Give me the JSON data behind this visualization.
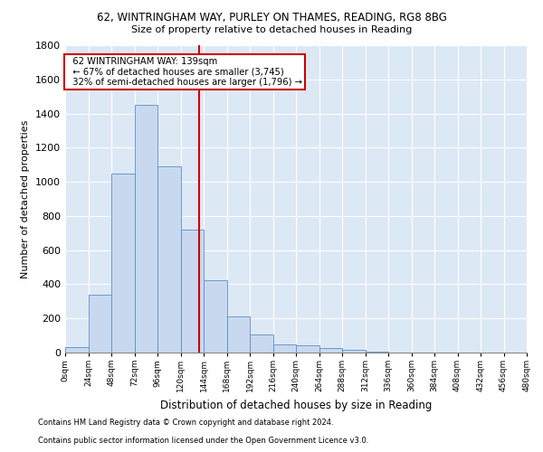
{
  "title1": "62, WINTRINGHAM WAY, PURLEY ON THAMES, READING, RG8 8BG",
  "title2": "Size of property relative to detached houses in Reading",
  "xlabel": "Distribution of detached houses by size in Reading",
  "ylabel": "Number of detached properties",
  "footnote1": "Contains HM Land Registry data © Crown copyright and database right 2024.",
  "footnote2": "Contains public sector information licensed under the Open Government Licence v3.0.",
  "annotation_line1": "62 WINTRINGHAM WAY: 139sqm",
  "annotation_line2": "← 67% of detached houses are smaller (3,745)",
  "annotation_line3": "32% of semi-detached houses are larger (1,796) →",
  "property_sqm": 139,
  "bin_width": 24,
  "bins": [
    0,
    24,
    48,
    72,
    96,
    120,
    144,
    168,
    192,
    216,
    240,
    264,
    288,
    312,
    336,
    360,
    384,
    408,
    432,
    456,
    480
  ],
  "bar_values": [
    30,
    340,
    1050,
    1450,
    1090,
    720,
    425,
    210,
    105,
    50,
    40,
    25,
    15,
    5,
    0,
    0,
    0,
    0,
    0,
    0
  ],
  "bar_color": "#c8d9ef",
  "bar_edge_color": "#5b8ec4",
  "vline_color": "#cc0000",
  "background_color": "#dde8f5",
  "grid_color": "#ffffff",
  "ylim": [
    0,
    1800
  ],
  "yticks": [
    0,
    200,
    400,
    600,
    800,
    1000,
    1200,
    1400,
    1600,
    1800
  ]
}
